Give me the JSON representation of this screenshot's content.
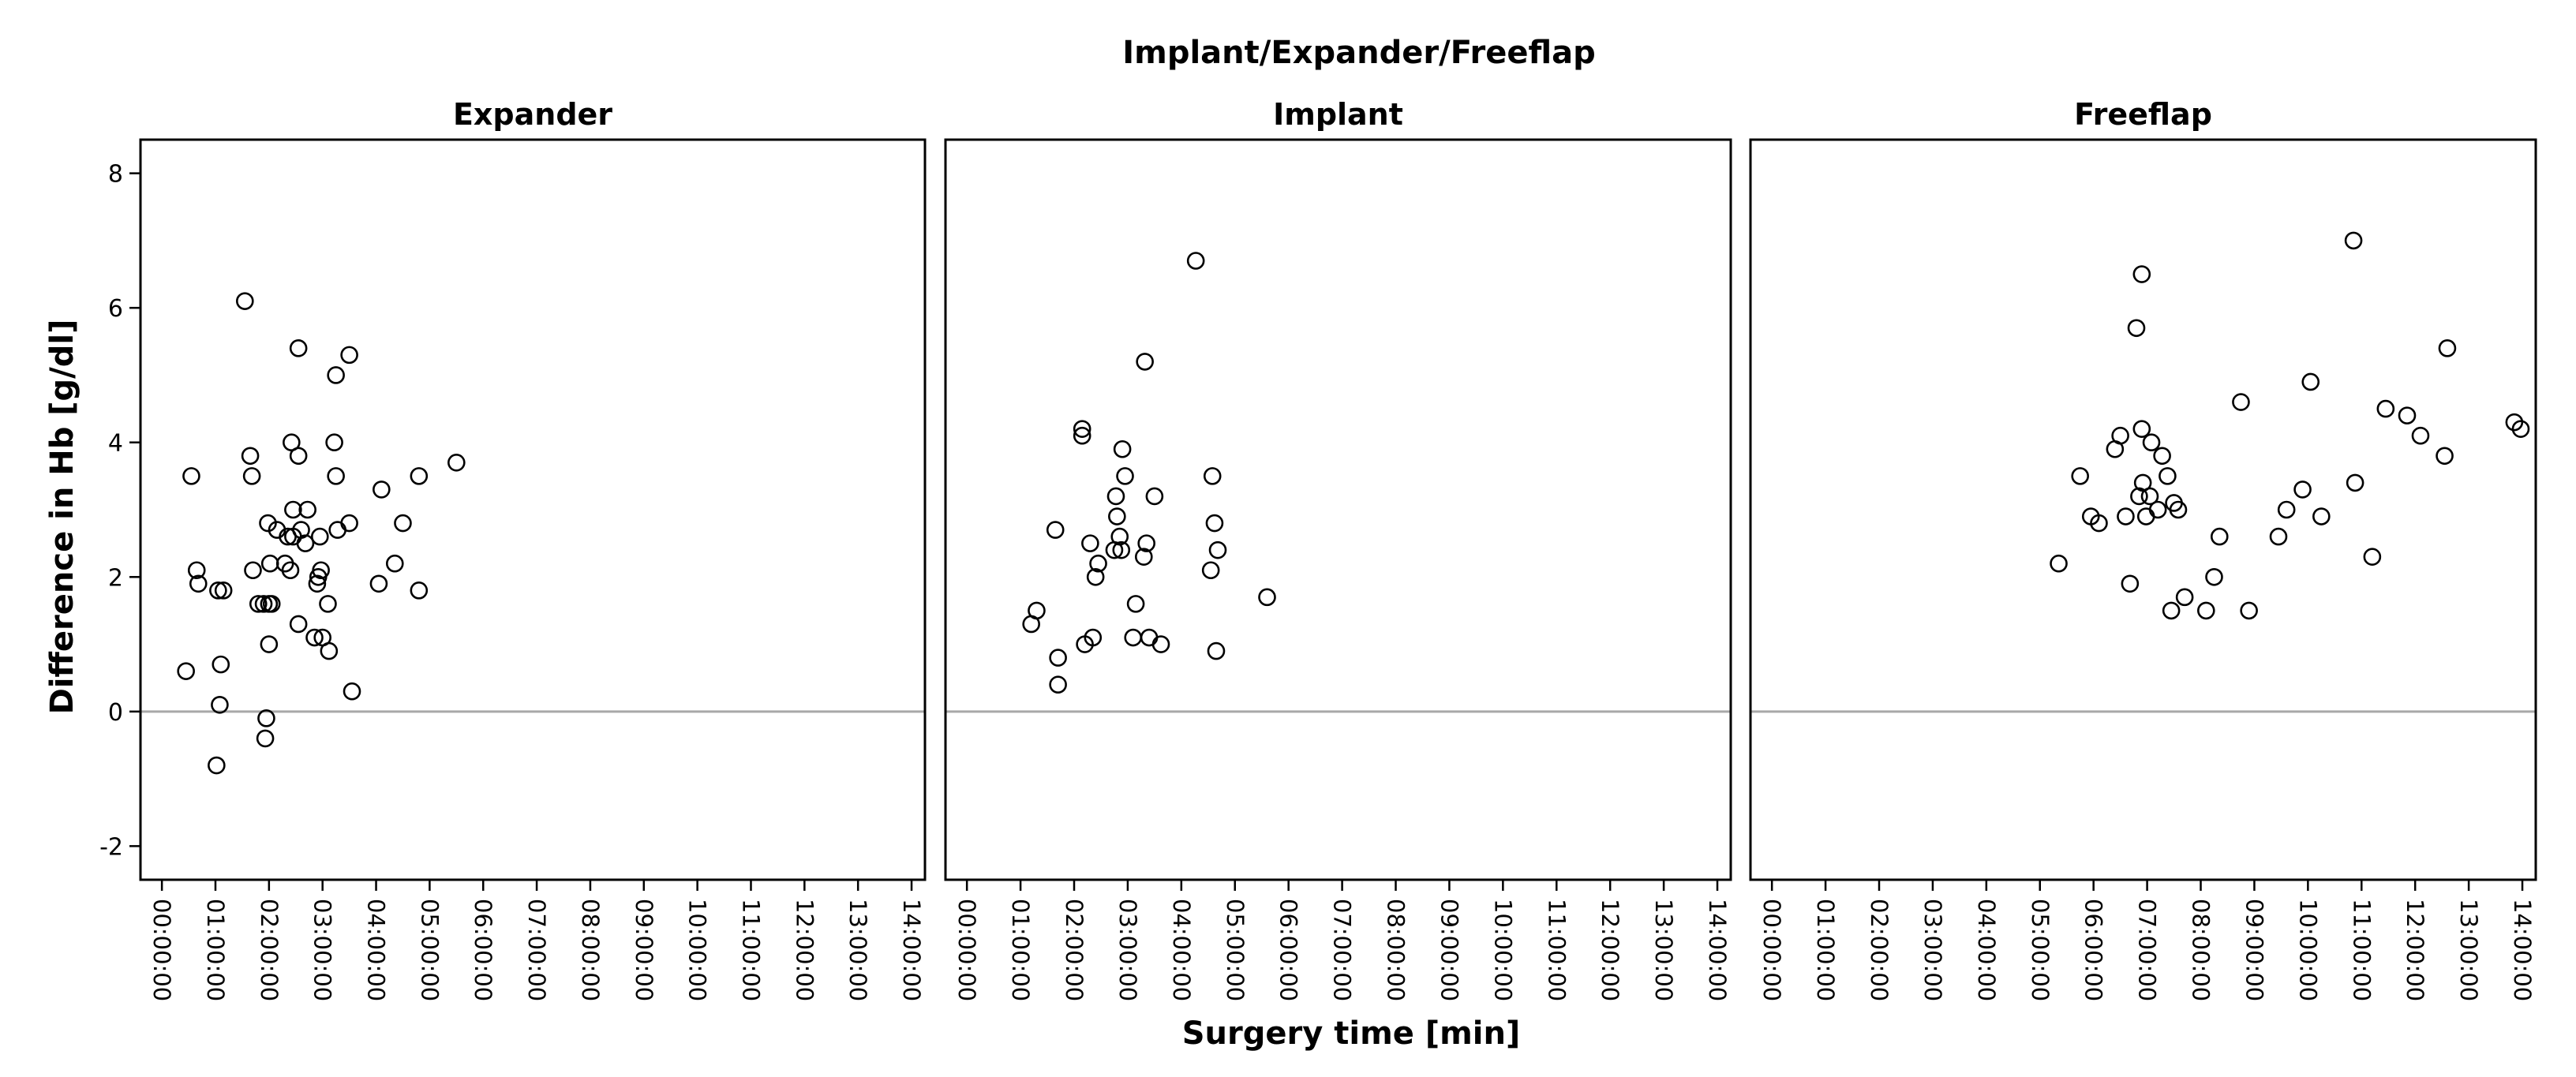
{
  "chart_data": {
    "type": "scatter",
    "title": "Implant/Expander/Freeflap",
    "xlabel": "Surgery time [min]",
    "ylabel": "Difference in Hb [g/dl]",
    "ylim": [
      -2.5,
      8.5
    ],
    "xlim_hours": [
      -0.4,
      14.25
    ],
    "yticks": [
      -2,
      0,
      2,
      4,
      6,
      8
    ],
    "ytick_labels": [
      "-2",
      "0",
      "2",
      "4",
      "6",
      "8"
    ],
    "xtick_hours": [
      0,
      1,
      2,
      3,
      4,
      5,
      6,
      7,
      8,
      9,
      10,
      11,
      12,
      13,
      14
    ],
    "xtick_labels": [
      "00:00:00",
      "01:00:00",
      "02:00:00",
      "03:00:00",
      "04:00:00",
      "05:00:00",
      "06:00:00",
      "07:00:00",
      "08:00:00",
      "09:00:00",
      "10:00:00",
      "11:00:00",
      "12:00:00",
      "13:00:00",
      "14:00:00"
    ],
    "reference_line_y": 0,
    "marker": "open-circle",
    "panels": [
      {
        "name": "Expander",
        "points": [
          [
            0.45,
            0.6
          ],
          [
            0.55,
            3.5
          ],
          [
            0.65,
            2.1
          ],
          [
            0.68,
            1.9
          ],
          [
            1.05,
            1.8
          ],
          [
            1.15,
            1.8
          ],
          [
            1.1,
            0.7
          ],
          [
            1.08,
            0.1
          ],
          [
            1.02,
            -0.8
          ],
          [
            1.55,
            6.1
          ],
          [
            1.65,
            3.8
          ],
          [
            1.68,
            3.5
          ],
          [
            1.7,
            2.1
          ],
          [
            1.8,
            1.6
          ],
          [
            1.9,
            1.6
          ],
          [
            1.95,
            -0.1
          ],
          [
            1.93,
            -0.4
          ],
          [
            1.98,
            2.8
          ],
          [
            2.0,
            1.6
          ],
          [
            2.02,
            2.2
          ],
          [
            2.05,
            1.6
          ],
          [
            2.0,
            1.0
          ],
          [
            2.15,
            2.7
          ],
          [
            2.3,
            2.2
          ],
          [
            2.35,
            2.6
          ],
          [
            2.4,
            2.1
          ],
          [
            2.42,
            4.0
          ],
          [
            2.45,
            3.0
          ],
          [
            2.45,
            2.6
          ],
          [
            2.55,
            5.4
          ],
          [
            2.55,
            3.8
          ],
          [
            2.55,
            1.3
          ],
          [
            2.6,
            2.7
          ],
          [
            2.68,
            2.5
          ],
          [
            2.72,
            3.0
          ],
          [
            2.85,
            1.1
          ],
          [
            2.9,
            1.9
          ],
          [
            2.92,
            2.0
          ],
          [
            2.95,
            2.6
          ],
          [
            2.97,
            2.1
          ],
          [
            3.0,
            1.1
          ],
          [
            3.1,
            1.6
          ],
          [
            3.12,
            0.9
          ],
          [
            3.25,
            5.0
          ],
          [
            3.22,
            4.0
          ],
          [
            3.25,
            3.5
          ],
          [
            3.28,
            2.7
          ],
          [
            3.5,
            5.3
          ],
          [
            3.5,
            2.8
          ],
          [
            3.55,
            0.3
          ],
          [
            4.05,
            1.9
          ],
          [
            4.1,
            3.3
          ],
          [
            4.35,
            2.2
          ],
          [
            4.5,
            2.8
          ],
          [
            4.8,
            3.5
          ],
          [
            4.8,
            1.8
          ],
          [
            5.5,
            3.7
          ]
        ]
      },
      {
        "name": "Implant",
        "points": [
          [
            1.2,
            1.3
          ],
          [
            1.3,
            1.5
          ],
          [
            1.65,
            2.7
          ],
          [
            1.7,
            0.8
          ],
          [
            1.7,
            0.4
          ],
          [
            2.15,
            4.2
          ],
          [
            2.15,
            4.1
          ],
          [
            2.2,
            1.0
          ],
          [
            2.3,
            2.5
          ],
          [
            2.35,
            1.1
          ],
          [
            2.4,
            2.0
          ],
          [
            2.45,
            2.2
          ],
          [
            2.75,
            2.4
          ],
          [
            2.78,
            3.2
          ],
          [
            2.8,
            2.9
          ],
          [
            2.85,
            2.6
          ],
          [
            2.88,
            2.4
          ],
          [
            2.9,
            3.9
          ],
          [
            2.95,
            3.5
          ],
          [
            3.1,
            1.1
          ],
          [
            3.15,
            1.6
          ],
          [
            3.3,
            2.3
          ],
          [
            3.32,
            5.2
          ],
          [
            3.35,
            2.5
          ],
          [
            3.4,
            1.1
          ],
          [
            3.5,
            3.2
          ],
          [
            3.62,
            1.0
          ],
          [
            4.27,
            6.7
          ],
          [
            4.55,
            2.1
          ],
          [
            4.58,
            3.5
          ],
          [
            4.62,
            2.8
          ],
          [
            4.65,
            0.9
          ],
          [
            4.68,
            2.4
          ],
          [
            5.6,
            1.7
          ]
        ]
      },
      {
        "name": "Freeflap",
        "points": [
          [
            5.35,
            2.2
          ],
          [
            5.75,
            3.5
          ],
          [
            5.95,
            2.9
          ],
          [
            6.1,
            2.8
          ],
          [
            6.4,
            3.9
          ],
          [
            6.5,
            4.1
          ],
          [
            6.6,
            2.9
          ],
          [
            6.68,
            1.9
          ],
          [
            6.8,
            5.7
          ],
          [
            6.85,
            3.2
          ],
          [
            6.9,
            6.5
          ],
          [
            6.9,
            4.2
          ],
          [
            6.92,
            3.4
          ],
          [
            6.98,
            2.9
          ],
          [
            7.05,
            3.2
          ],
          [
            7.08,
            4.0
          ],
          [
            7.2,
            3.0
          ],
          [
            7.28,
            3.8
          ],
          [
            7.38,
            3.5
          ],
          [
            7.45,
            1.5
          ],
          [
            7.5,
            3.1
          ],
          [
            7.58,
            3.0
          ],
          [
            7.7,
            1.7
          ],
          [
            8.1,
            1.5
          ],
          [
            8.25,
            2.0
          ],
          [
            8.35,
            2.6
          ],
          [
            8.75,
            4.6
          ],
          [
            8.9,
            1.5
          ],
          [
            9.45,
            2.6
          ],
          [
            9.6,
            3.0
          ],
          [
            9.9,
            3.3
          ],
          [
            10.05,
            4.9
          ],
          [
            10.25,
            2.9
          ],
          [
            10.85,
            7.0
          ],
          [
            10.88,
            3.4
          ],
          [
            11.2,
            2.3
          ],
          [
            11.45,
            4.5
          ],
          [
            11.85,
            4.4
          ],
          [
            12.1,
            4.1
          ],
          [
            12.55,
            3.8
          ],
          [
            12.6,
            5.4
          ],
          [
            13.85,
            4.3
          ],
          [
            13.97,
            4.2
          ]
        ]
      }
    ]
  }
}
